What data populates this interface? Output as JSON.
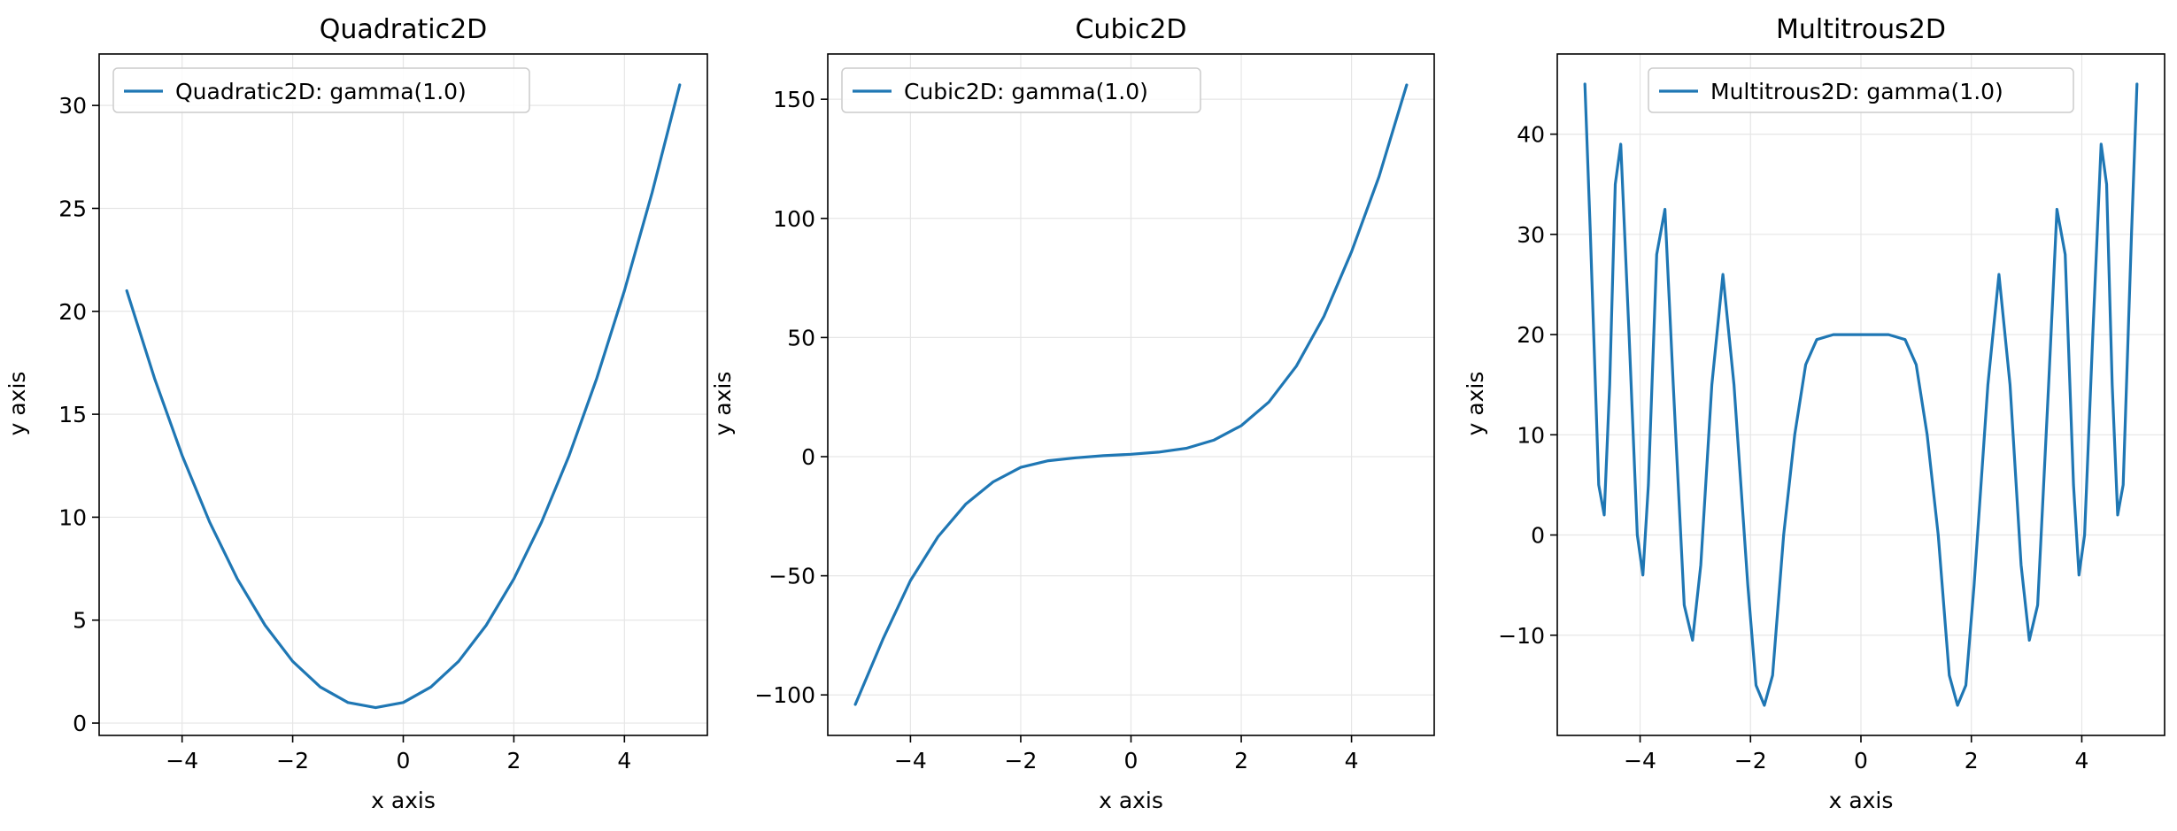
{
  "chart_data": [
    {
      "type": "line",
      "title": "Quadratic2D",
      "xlabel": "x axis",
      "ylabel": "y axis",
      "xlim": [
        -5.5,
        5.5
      ],
      "ylim": [
        -0.6,
        32.5
      ],
      "xticks": [
        -4,
        -2,
        0,
        2,
        4
      ],
      "xtick_labels": [
        "−4",
        "−2",
        "0",
        "2",
        "4"
      ],
      "yticks": [
        0,
        5,
        10,
        15,
        20,
        25,
        30
      ],
      "ytick_labels": [
        "0",
        "5",
        "10",
        "15",
        "20",
        "25",
        "30"
      ],
      "grid": true,
      "legend_position": "upper-left",
      "series": [
        {
          "name": "Quadratic2D: gamma(1.0)",
          "color": "#1f77b4",
          "x": [
            -5,
            -4.5,
            -4,
            -3.5,
            -3,
            -2.5,
            -2,
            -1.5,
            -1,
            -0.5,
            0,
            0.5,
            1,
            1.5,
            2,
            2.5,
            3,
            3.5,
            4,
            4.5,
            5
          ],
          "y": [
            21,
            16.75,
            13,
            9.75,
            7,
            4.75,
            3,
            1.75,
            1,
            0.75,
            1,
            1.75,
            3,
            4.75,
            7,
            9.75,
            13,
            16.75,
            21,
            25.75,
            31
          ]
        }
      ]
    },
    {
      "type": "line",
      "title": "Cubic2D",
      "xlabel": "x axis",
      "ylabel": "y axis",
      "xlim": [
        -5.5,
        5.5
      ],
      "ylim": [
        -117,
        169
      ],
      "xticks": [
        -4,
        -2,
        0,
        2,
        4
      ],
      "xtick_labels": [
        "−4",
        "−2",
        "0",
        "2",
        "4"
      ],
      "yticks": [
        -100,
        -50,
        0,
        50,
        100,
        150
      ],
      "ytick_labels": [
        "−100",
        "−50",
        "0",
        "50",
        "100",
        "150"
      ],
      "grid": true,
      "legend_position": "upper-left",
      "series": [
        {
          "name": "Cubic2D: gamma(1.0)",
          "color": "#1f77b4",
          "x": [
            -5,
            -4.5,
            -4,
            -3.5,
            -3,
            -2.5,
            -2,
            -1.5,
            -1,
            -0.5,
            0,
            0.5,
            1,
            1.5,
            2,
            2.5,
            3,
            3.5,
            4,
            4.5,
            5
          ],
          "y": [
            -104,
            -76.6,
            -52,
            -33.6,
            -20,
            -10.6,
            -4.5,
            -1.7,
            -0.5,
            0.4,
            1,
            1.9,
            3.5,
            6.9,
            13,
            22.9,
            38,
            58.9,
            86,
            117.6,
            156
          ]
        }
      ]
    },
    {
      "type": "line",
      "title": "Multitrous2D",
      "xlabel": "x axis",
      "ylabel": "y axis",
      "xlim": [
        -5.5,
        5.5
      ],
      "ylim": [
        -20,
        48
      ],
      "xticks": [
        -4,
        -2,
        0,
        2,
        4
      ],
      "xtick_labels": [
        "−4",
        "−2",
        "0",
        "2",
        "4"
      ],
      "yticks": [
        -10,
        0,
        10,
        20,
        30,
        40
      ],
      "ytick_labels": [
        "−10",
        "0",
        "10",
        "20",
        "30",
        "40"
      ],
      "grid": true,
      "legend_position": "upper-center",
      "series": [
        {
          "name": "Multitrous2D: gamma(1.0)",
          "color": "#1f77b4",
          "x": [
            -5,
            -4.9,
            -4.75,
            -4.65,
            -4.55,
            -4.45,
            -4.35,
            -4.2,
            -4.05,
            -3.95,
            -3.85,
            -3.7,
            -3.55,
            -3.4,
            -3.2,
            -3.05,
            -2.9,
            -2.7,
            -2.5,
            -2.3,
            -2.05,
            -1.9,
            -1.75,
            -1.6,
            -1.4,
            -1.2,
            -1.0,
            -0.8,
            -0.5,
            -0.25,
            0,
            0.25,
            0.5,
            0.8,
            1.0,
            1.2,
            1.4,
            1.6,
            1.75,
            1.9,
            2.05,
            2.3,
            2.5,
            2.7,
            2.9,
            3.05,
            3.2,
            3.4,
            3.55,
            3.7,
            3.85,
            3.95,
            4.05,
            4.2,
            4.35,
            4.45,
            4.55,
            4.65,
            4.75,
            4.9,
            5
          ],
          "y": [
            45,
            30,
            5,
            2,
            15,
            35,
            39,
            20,
            0,
            -4,
            5,
            28,
            32.5,
            15,
            -7,
            -10.5,
            -3,
            15,
            26,
            15,
            -5,
            -15,
            -17,
            -14,
            0,
            10,
            17,
            19.5,
            20,
            20,
            20,
            20,
            20,
            19.5,
            17,
            10,
            0,
            -14,
            -17,
            -15,
            -5,
            15,
            26,
            15,
            -3,
            -10.5,
            -7,
            15,
            32.5,
            28,
            5,
            -4,
            0,
            20,
            39,
            35,
            15,
            2,
            5,
            30,
            45
          ]
        }
      ]
    }
  ]
}
